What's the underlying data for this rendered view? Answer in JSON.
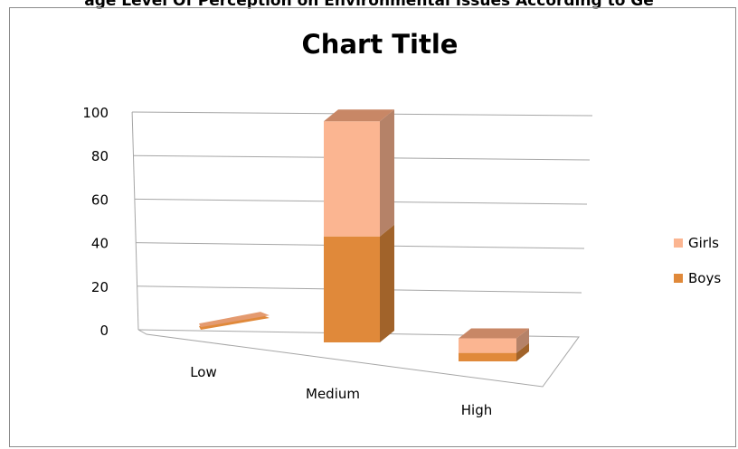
{
  "top_caption": "age Level Of Perception on Environmental Issues According to Ge",
  "chart_data": {
    "type": "bar",
    "stacked": true,
    "three_d": true,
    "title": "Chart Title",
    "categories": [
      "Low",
      "Medium",
      "High"
    ],
    "series": [
      {
        "name": "Boys",
        "values": [
          1,
          46,
          7
        ],
        "color": "#e0893a"
      },
      {
        "name": "Girls",
        "values": [
          1,
          50,
          12
        ],
        "color": "#fbb591"
      }
    ],
    "ylim": [
      0,
      100
    ],
    "yticks": [
      0,
      20,
      40,
      60,
      80,
      100
    ],
    "grid": true,
    "legend_position": "right"
  }
}
